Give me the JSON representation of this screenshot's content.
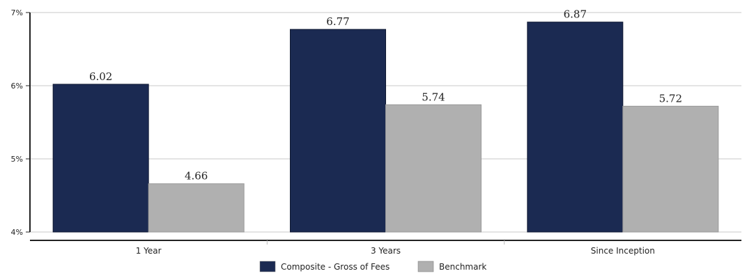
{
  "chart_data": {
    "type": "bar",
    "categories": [
      "1 Year",
      "3 Years",
      "Since Inception"
    ],
    "series": [
      {
        "name": "Composite - Gross of Fees",
        "values": [
          6.02,
          6.77,
          6.87
        ],
        "color": "#1b2a52"
      },
      {
        "name": "Benchmark",
        "values": [
          4.66,
          5.74,
          5.72
        ],
        "color": "#b0b0b0"
      }
    ],
    "ylim": [
      4,
      7
    ],
    "yticks": [
      4,
      5,
      6,
      7
    ],
    "ytick_labels": [
      "4%",
      "5%",
      "6%",
      "7%"
    ],
    "data_labels": [
      [
        "6.02",
        "6.77",
        "6.87"
      ],
      [
        "4.66",
        "5.74",
        "5.72"
      ]
    ],
    "legend_position": "bottom",
    "grid": true
  }
}
